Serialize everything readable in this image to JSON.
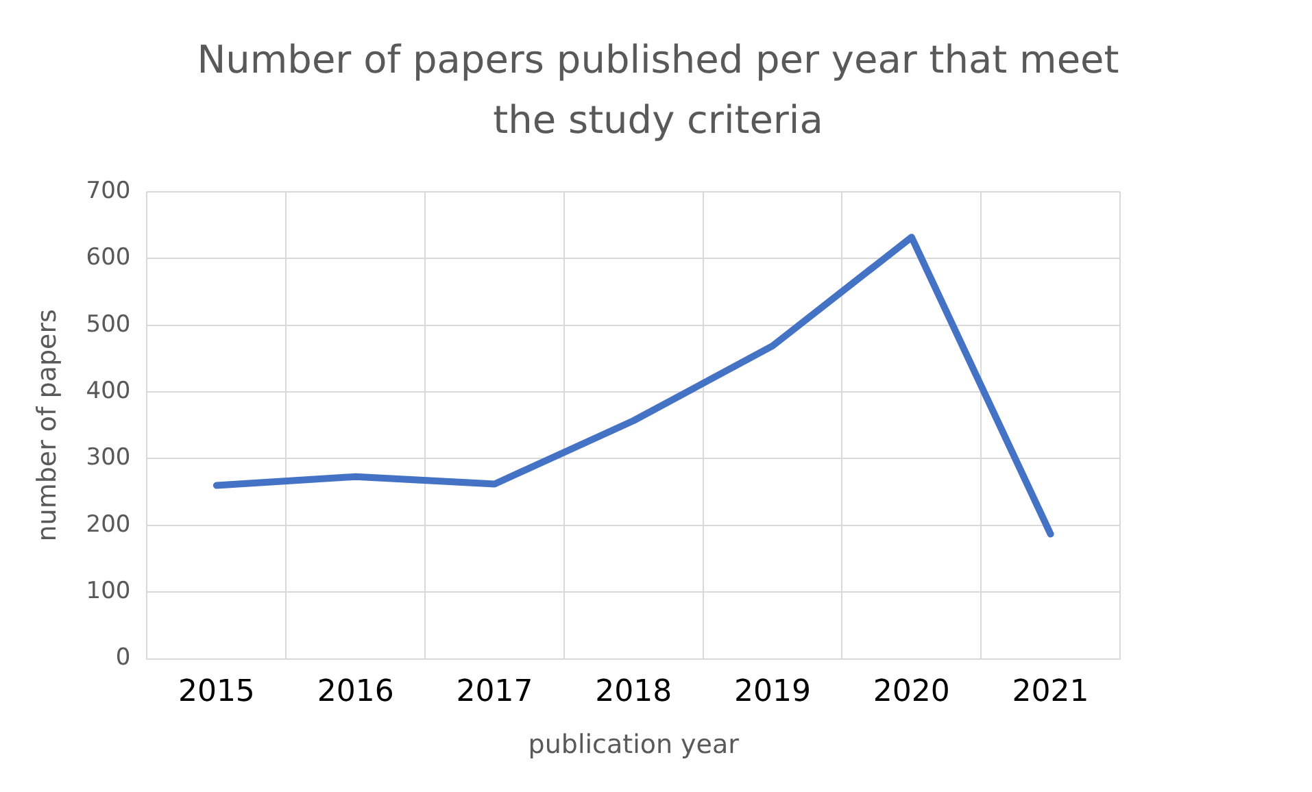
{
  "chart_data": {
    "type": "line",
    "title": "Number of papers published per year that meet the study criteria",
    "xlabel": "publication year",
    "ylabel": "number of papers",
    "categories": [
      "2015",
      "2016",
      "2017",
      "2018",
      "2019",
      "2020",
      "2021"
    ],
    "series": [
      {
        "color": "#4472c4",
        "values": [
          260,
          273,
          262,
          357,
          469,
          632,
          187
        ]
      }
    ],
    "ylim": [
      0,
      700
    ],
    "yticks": [
      0,
      100,
      200,
      300,
      400,
      500,
      600,
      700
    ],
    "grid": true,
    "legend": false,
    "marker": "none",
    "line_style": "solid"
  }
}
